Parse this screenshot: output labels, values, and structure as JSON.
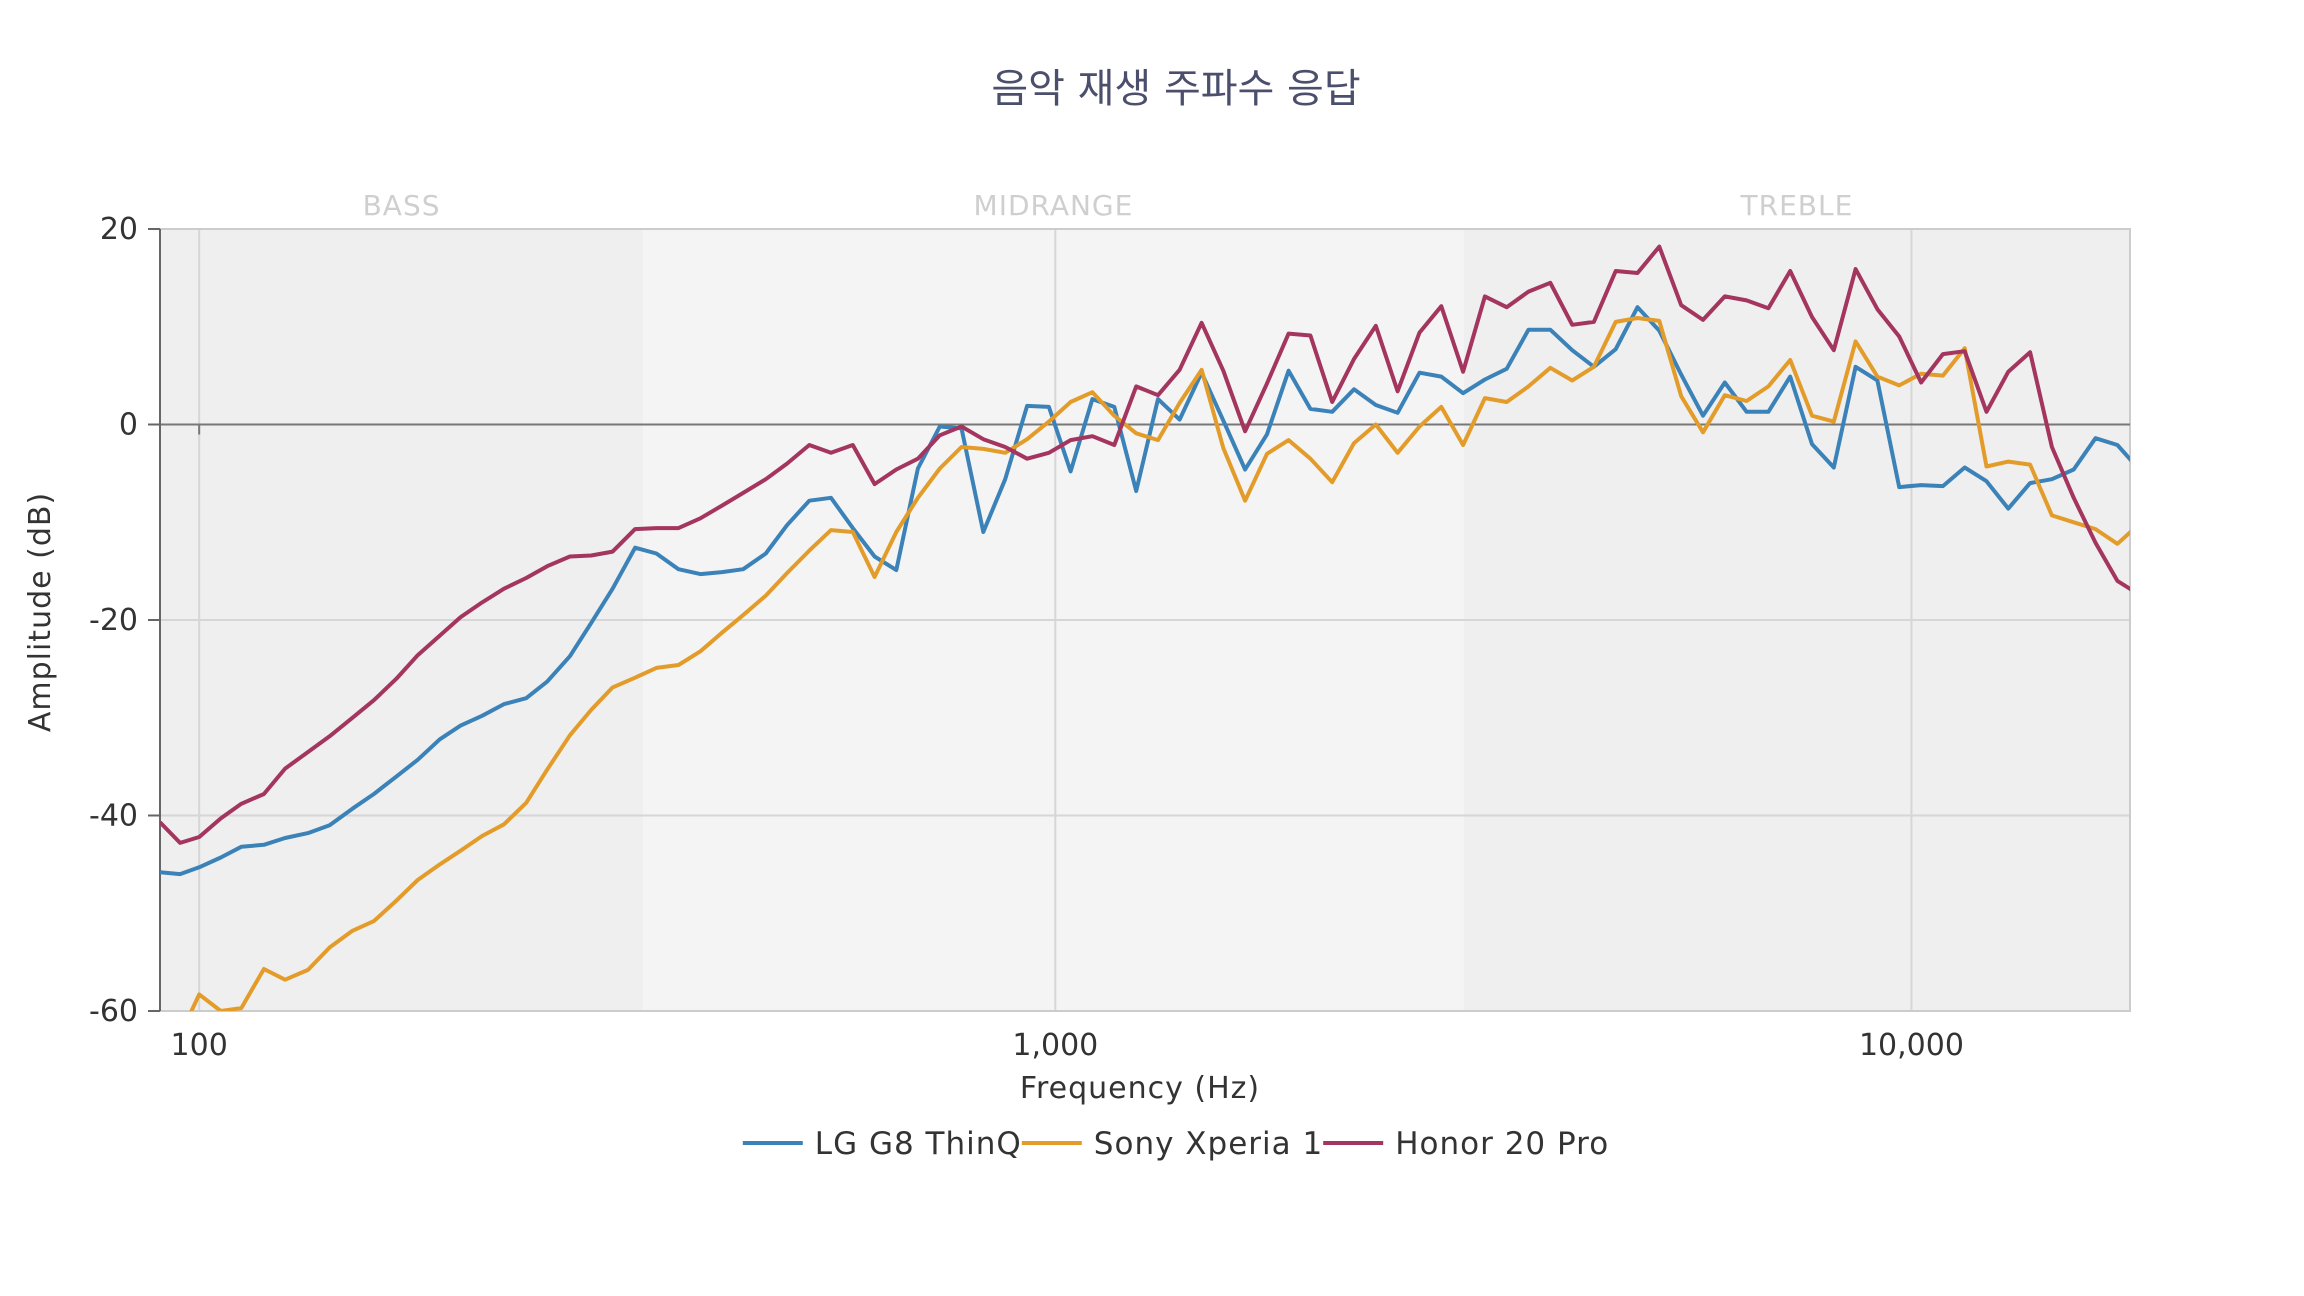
{
  "chart_data": {
    "type": "line",
    "title": "음악 재생 주파수 응답",
    "xlabel": "Frequency (Hz)",
    "ylabel": "Amplitude (dB)",
    "x_scale": "log",
    "xlim": [
      90,
      18000
    ],
    "ylim": [
      -60,
      20
    ],
    "x_ticks": [
      {
        "value": 100,
        "label": "100"
      },
      {
        "value": 1000,
        "label": "1,000"
      },
      {
        "value": 10000,
        "label": "10,000"
      }
    ],
    "y_ticks": [
      {
        "value": 20,
        "label": "20"
      },
      {
        "value": 0,
        "label": "0"
      },
      {
        "value": -20,
        "label": "-20"
      },
      {
        "value": -40,
        "label": "-40"
      },
      {
        "value": -60,
        "label": "-60"
      }
    ],
    "bands": [
      {
        "label": "BASS",
        "from": 90,
        "to": 330,
        "color": "#efefef"
      },
      {
        "label": "MIDRANGE",
        "from": 330,
        "to": 3000,
        "color": "#f4f4f4"
      },
      {
        "label": "TREBLE",
        "from": 3000,
        "to": 18000,
        "color": "#efefef"
      }
    ],
    "grid": true,
    "legend_position": "bottom",
    "series": [
      {
        "name": "LG G8 ThinQ",
        "color": "#3b82b8",
        "points": [
          [
            90,
            -45.8
          ],
          [
            95,
            -46
          ],
          [
            100,
            -45.3
          ],
          [
            106,
            -44.3
          ],
          [
            112,
            -43.2
          ],
          [
            119,
            -43
          ],
          [
            126,
            -42.3
          ],
          [
            134,
            -41.8
          ],
          [
            142,
            -41
          ],
          [
            151,
            -39.3
          ],
          [
            160,
            -37.8
          ],
          [
            170,
            -36
          ],
          [
            180,
            -34.3
          ],
          [
            191,
            -32.2
          ],
          [
            202,
            -30.8
          ],
          [
            214,
            -29.8
          ],
          [
            227,
            -28.6
          ],
          [
            241,
            -28
          ],
          [
            255,
            -26.3
          ],
          [
            271,
            -23.7
          ],
          [
            287,
            -20.3
          ],
          [
            304,
            -16.8
          ],
          [
            323,
            -12.6
          ],
          [
            342,
            -13.2
          ],
          [
            363,
            -14.8
          ],
          [
            385,
            -15.3
          ],
          [
            408,
            -15.1
          ],
          [
            432,
            -14.8
          ],
          [
            459,
            -13.2
          ],
          [
            486,
            -10.3
          ],
          [
            516,
            -7.8
          ],
          [
            547,
            -7.5
          ],
          [
            580,
            -10.6
          ],
          [
            615,
            -13.5
          ],
          [
            652,
            -14.9
          ],
          [
            691,
            -4.5
          ],
          [
            733,
            -0.2
          ],
          [
            777,
            -0.4
          ],
          [
            824,
            -11
          ],
          [
            874,
            -5.6
          ],
          [
            927,
            1.9
          ],
          [
            983,
            1.8
          ],
          [
            1042,
            -4.8
          ],
          [
            1105,
            2.6
          ],
          [
            1172,
            1.8
          ],
          [
            1243,
            -6.8
          ],
          [
            1318,
            2.6
          ],
          [
            1397,
            0.5
          ],
          [
            1482,
            5.3
          ],
          [
            1571,
            0.4
          ],
          [
            1666,
            -4.6
          ],
          [
            1767,
            -1
          ],
          [
            1873,
            5.5
          ],
          [
            1986,
            1.6
          ],
          [
            2106,
            1.3
          ],
          [
            2233,
            3.6
          ],
          [
            2368,
            2
          ],
          [
            2511,
            1.2
          ],
          [
            2663,
            5.3
          ],
          [
            2824,
            4.9
          ],
          [
            2994,
            3.2
          ],
          [
            3175,
            4.6
          ],
          [
            3367,
            5.7
          ],
          [
            3570,
            9.7
          ],
          [
            3786,
            9.7
          ],
          [
            4015,
            7.6
          ],
          [
            4257,
            5.9
          ],
          [
            4514,
            7.7
          ],
          [
            4787,
            12
          ],
          [
            5076,
            9.6
          ],
          [
            5383,
            5.1
          ],
          [
            5708,
            0.9
          ],
          [
            6053,
            4.3
          ],
          [
            6418,
            1.3
          ],
          [
            6806,
            1.3
          ],
          [
            7217,
            4.9
          ],
          [
            7653,
            -2
          ],
          [
            8116,
            -4.4
          ],
          [
            8606,
            5.9
          ],
          [
            9126,
            4.5
          ],
          [
            9677,
            -6.4
          ],
          [
            10262,
            -6.2
          ],
          [
            10882,
            -6.3
          ],
          [
            11539,
            -4.4
          ],
          [
            12236,
            -5.8
          ],
          [
            12975,
            -8.6
          ],
          [
            13759,
            -6
          ],
          [
            14590,
            -5.6
          ],
          [
            15472,
            -4.6
          ],
          [
            16407,
            -1.4
          ],
          [
            17398,
            -2.1
          ],
          [
            18449,
            -4.6
          ],
          [
            19564,
            -4.4
          ],
          [
            20745,
            -11
          ],
          [
            22000,
            -9.6
          ]
        ]
      },
      {
        "name": "Sony Xperia 1",
        "color": "#e39c2a",
        "points": [
          [
            90,
            -63.5
          ],
          [
            95,
            -62.5
          ],
          [
            100,
            -58.3
          ],
          [
            106,
            -60
          ],
          [
            112,
            -59.7
          ],
          [
            119,
            -55.7
          ],
          [
            126,
            -56.8
          ],
          [
            134,
            -55.8
          ],
          [
            142,
            -53.5
          ],
          [
            151,
            -51.8
          ],
          [
            160,
            -50.8
          ],
          [
            170,
            -48.7
          ],
          [
            180,
            -46.6
          ],
          [
            191,
            -45
          ],
          [
            202,
            -43.6
          ],
          [
            214,
            -42.1
          ],
          [
            227,
            -40.9
          ],
          [
            241,
            -38.7
          ],
          [
            255,
            -35.3
          ],
          [
            271,
            -31.8
          ],
          [
            287,
            -29.2
          ],
          [
            304,
            -26.9
          ],
          [
            323,
            -25.9
          ],
          [
            342,
            -24.9
          ],
          [
            363,
            -24.6
          ],
          [
            385,
            -23.2
          ],
          [
            408,
            -21.3
          ],
          [
            432,
            -19.5
          ],
          [
            459,
            -17.5
          ],
          [
            486,
            -15.2
          ],
          [
            516,
            -12.9
          ],
          [
            547,
            -10.8
          ],
          [
            580,
            -11
          ],
          [
            615,
            -15.6
          ],
          [
            652,
            -11
          ],
          [
            691,
            -7.5
          ],
          [
            733,
            -4.5
          ],
          [
            777,
            -2.3
          ],
          [
            824,
            -2.5
          ],
          [
            874,
            -2.9
          ],
          [
            927,
            -1.5
          ],
          [
            983,
            0.3
          ],
          [
            1042,
            2.3
          ],
          [
            1105,
            3.3
          ],
          [
            1172,
            0.9
          ],
          [
            1243,
            -0.9
          ],
          [
            1318,
            -1.6
          ],
          [
            1397,
            2.2
          ],
          [
            1482,
            5.6
          ],
          [
            1571,
            -2.4
          ],
          [
            1666,
            -7.8
          ],
          [
            1767,
            -3
          ],
          [
            1873,
            -1.6
          ],
          [
            1986,
            -3.5
          ],
          [
            2106,
            -5.9
          ],
          [
            2233,
            -1.9
          ],
          [
            2368,
            0
          ],
          [
            2511,
            -2.9
          ],
          [
            2663,
            -0.2
          ],
          [
            2824,
            1.8
          ],
          [
            2994,
            -2.1
          ],
          [
            3175,
            2.7
          ],
          [
            3367,
            2.3
          ],
          [
            3570,
            3.9
          ],
          [
            3786,
            5.8
          ],
          [
            4015,
            4.5
          ],
          [
            4257,
            5.9
          ],
          [
            4514,
            10.5
          ],
          [
            4787,
            10.9
          ],
          [
            5076,
            10.6
          ],
          [
            5383,
            2.9
          ],
          [
            5708,
            -0.8
          ],
          [
            6053,
            3
          ],
          [
            6418,
            2.4
          ],
          [
            6806,
            3.9
          ],
          [
            7217,
            6.6
          ],
          [
            7653,
            0.9
          ],
          [
            8116,
            0.3
          ],
          [
            8606,
            8.5
          ],
          [
            9126,
            4.9
          ],
          [
            9677,
            4
          ],
          [
            10262,
            5.2
          ],
          [
            10882,
            5
          ],
          [
            11539,
            7.8
          ],
          [
            12236,
            -4.3
          ],
          [
            12975,
            -3.8
          ],
          [
            13759,
            -4.1
          ],
          [
            14590,
            -9.3
          ],
          [
            15472,
            -10
          ],
          [
            16407,
            -10.7
          ],
          [
            17398,
            -12.2
          ],
          [
            18449,
            -10.2
          ],
          [
            19564,
            -17
          ],
          [
            20745,
            -25.7
          ],
          [
            22000,
            -22.7
          ]
        ]
      },
      {
        "name": "Honor 20 Pro",
        "color": "#a3355e",
        "points": [
          [
            90,
            -40.7
          ],
          [
            95,
            -42.8
          ],
          [
            100,
            -42.2
          ],
          [
            106,
            -40.3
          ],
          [
            112,
            -38.8
          ],
          [
            119,
            -37.8
          ],
          [
            126,
            -35.2
          ],
          [
            134,
            -33.5
          ],
          [
            142,
            -31.9
          ],
          [
            151,
            -30
          ],
          [
            160,
            -28.2
          ],
          [
            170,
            -26
          ],
          [
            180,
            -23.6
          ],
          [
            191,
            -21.6
          ],
          [
            202,
            -19.7
          ],
          [
            214,
            -18.2
          ],
          [
            227,
            -16.8
          ],
          [
            241,
            -15.7
          ],
          [
            255,
            -14.5
          ],
          [
            271,
            -13.5
          ],
          [
            287,
            -13.4
          ],
          [
            304,
            -13
          ],
          [
            323,
            -10.7
          ],
          [
            342,
            -10.6
          ],
          [
            363,
            -10.6
          ],
          [
            385,
            -9.6
          ],
          [
            408,
            -8.3
          ],
          [
            432,
            -7
          ],
          [
            459,
            -5.6
          ],
          [
            486,
            -4
          ],
          [
            516,
            -2.1
          ],
          [
            547,
            -2.9
          ],
          [
            580,
            -2.1
          ],
          [
            615,
            -6.1
          ],
          [
            652,
            -4.6
          ],
          [
            691,
            -3.5
          ],
          [
            733,
            -1.1
          ],
          [
            777,
            -0.2
          ],
          [
            824,
            -1.5
          ],
          [
            874,
            -2.3
          ],
          [
            927,
            -3.5
          ],
          [
            983,
            -2.9
          ],
          [
            1042,
            -1.6
          ],
          [
            1105,
            -1.2
          ],
          [
            1172,
            -2.1
          ],
          [
            1243,
            3.9
          ],
          [
            1318,
            3
          ],
          [
            1397,
            5.6
          ],
          [
            1482,
            10.4
          ],
          [
            1571,
            5.5
          ],
          [
            1666,
            -0.7
          ],
          [
            1767,
            4.2
          ],
          [
            1873,
            9.3
          ],
          [
            1986,
            9.1
          ],
          [
            2106,
            2.3
          ],
          [
            2233,
            6.7
          ],
          [
            2368,
            10.1
          ],
          [
            2511,
            3.4
          ],
          [
            2663,
            9.4
          ],
          [
            2824,
            12.1
          ],
          [
            2994,
            5.4
          ],
          [
            3175,
            13.1
          ],
          [
            3367,
            12
          ],
          [
            3570,
            13.6
          ],
          [
            3786,
            14.5
          ],
          [
            4015,
            10.2
          ],
          [
            4257,
            10.5
          ],
          [
            4514,
            15.7
          ],
          [
            4787,
            15.5
          ],
          [
            5076,
            18.2
          ],
          [
            5383,
            12.2
          ],
          [
            5708,
            10.7
          ],
          [
            6053,
            13.1
          ],
          [
            6418,
            12.7
          ],
          [
            6806,
            11.9
          ],
          [
            7217,
            15.7
          ],
          [
            7653,
            11
          ],
          [
            8116,
            7.6
          ],
          [
            8606,
            15.9
          ],
          [
            9126,
            11.8
          ],
          [
            9677,
            9
          ],
          [
            10262,
            4.3
          ],
          [
            10882,
            7.2
          ],
          [
            11539,
            7.5
          ],
          [
            12236,
            1.3
          ],
          [
            12975,
            5.4
          ],
          [
            13759,
            7.4
          ],
          [
            14590,
            -2.3
          ],
          [
            15472,
            -7.5
          ],
          [
            16407,
            -12.1
          ],
          [
            17398,
            -16
          ],
          [
            18449,
            -17.4
          ],
          [
            19564,
            -22.1
          ],
          [
            20745,
            -15
          ],
          [
            22000,
            -9.3
          ]
        ]
      }
    ]
  }
}
